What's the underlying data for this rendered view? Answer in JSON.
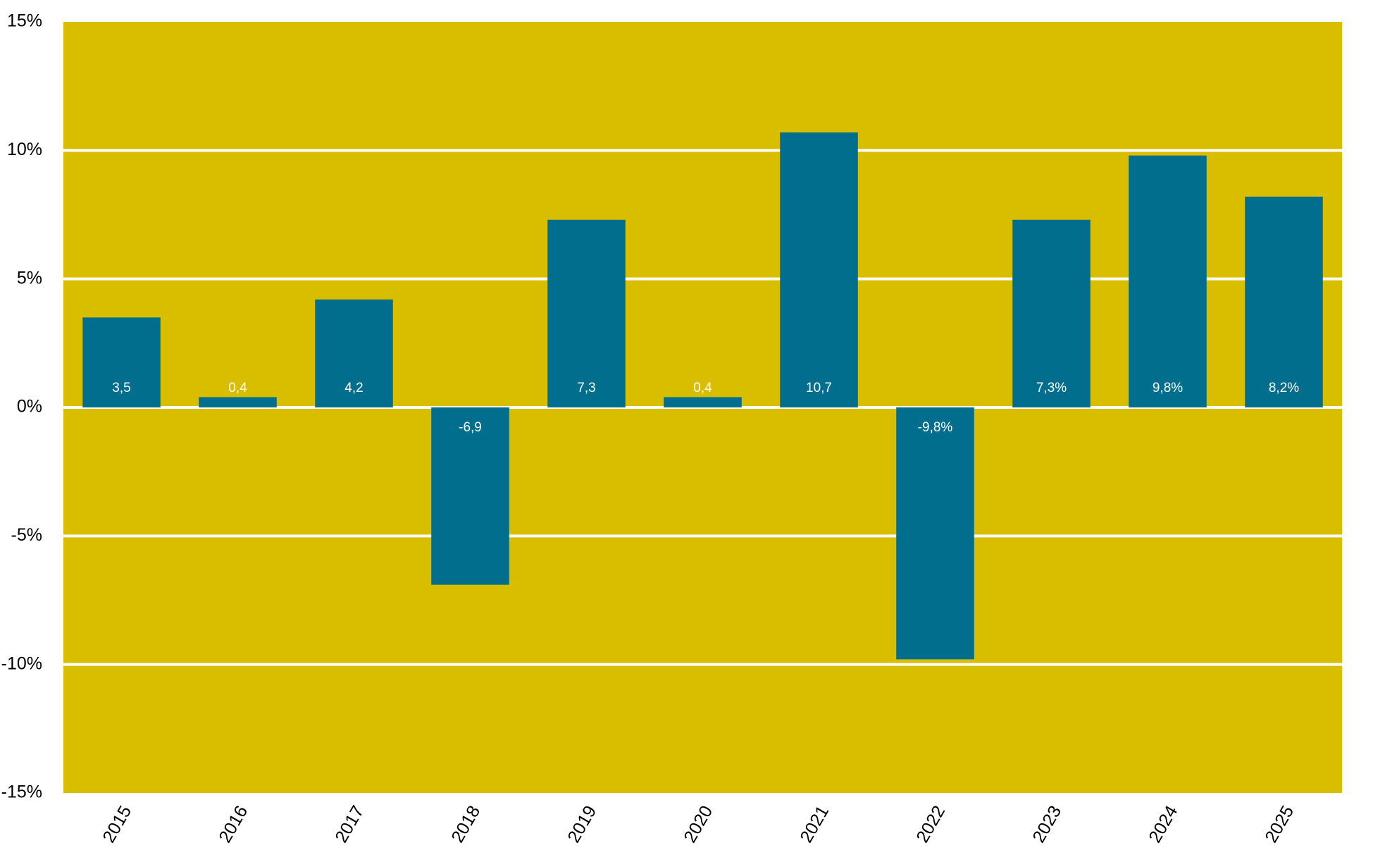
{
  "chart_data": {
    "type": "bar",
    "categories": [
      "2015",
      "2016",
      "2017",
      "2018",
      "2019",
      "2020",
      "2021",
      "2022",
      "2023",
      "2024",
      "2025"
    ],
    "values": [
      3.5,
      0.4,
      4.2,
      -6.9,
      7.3,
      0.4,
      10.7,
      -9.8,
      7.3,
      9.8,
      8.2
    ],
    "value_labels": [
      "3,5",
      "0,4",
      "4,2",
      "-6,9",
      "7,3",
      "0,4",
      "10,7",
      "-9,8%",
      "7,3%",
      "9,8%",
      "8,2%"
    ],
    "color": "#006e8c",
    "background": "#d9be00",
    "ylim": [
      -15,
      15
    ],
    "yticks": [
      {
        "value": -15,
        "label": "-15%"
      },
      {
        "value": -10,
        "label": "-10%"
      },
      {
        "value": -5,
        "label": "-5%"
      },
      {
        "value": 0,
        "label": "0%"
      },
      {
        "value": 5,
        "label": "5%"
      },
      {
        "value": 10,
        "label": "10%"
      },
      {
        "value": 15,
        "label": "15%"
      }
    ],
    "grid": true
  }
}
